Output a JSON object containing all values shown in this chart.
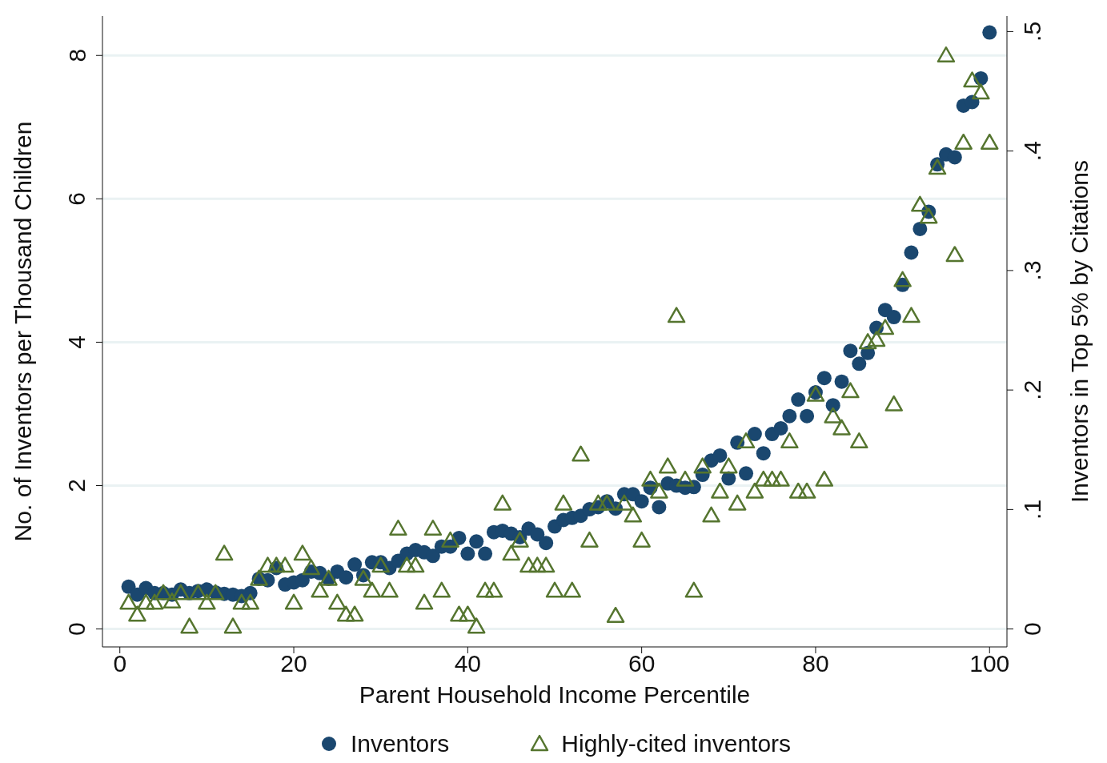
{
  "chart_data": {
    "type": "scatter",
    "xlabel": "Parent Household Income Percentile",
    "ylabel": "No. of Inventors per Thousand Children",
    "y2label": "Inventors in Top 5% by Citations",
    "x": [
      1,
      2,
      3,
      4,
      5,
      6,
      7,
      8,
      9,
      10,
      11,
      12,
      13,
      14,
      15,
      16,
      17,
      18,
      19,
      20,
      21,
      22,
      23,
      24,
      25,
      26,
      27,
      28,
      29,
      30,
      31,
      32,
      33,
      34,
      35,
      36,
      37,
      38,
      39,
      40,
      41,
      42,
      43,
      44,
      45,
      46,
      47,
      48,
      49,
      50,
      51,
      52,
      53,
      54,
      55,
      56,
      57,
      58,
      59,
      60,
      61,
      62,
      63,
      64,
      65,
      66,
      67,
      68,
      69,
      70,
      71,
      72,
      73,
      74,
      75,
      76,
      77,
      78,
      79,
      80,
      81,
      82,
      83,
      84,
      85,
      86,
      87,
      88,
      89,
      90,
      91,
      92,
      93,
      94,
      95,
      96,
      97,
      98,
      99,
      100
    ],
    "series": [
      {
        "name": "Inventors",
        "color": "#1a476f",
        "marker": "circle",
        "values": [
          0.59,
          0.48,
          0.57,
          0.5,
          0.5,
          0.48,
          0.55,
          0.5,
          0.53,
          0.55,
          0.51,
          0.49,
          0.48,
          0.46,
          0.5,
          0.7,
          0.68,
          0.85,
          0.62,
          0.65,
          0.68,
          0.8,
          0.78,
          0.7,
          0.8,
          0.72,
          0.9,
          0.75,
          0.93,
          0.93,
          0.85,
          0.95,
          1.05,
          1.1,
          1.07,
          1.02,
          1.15,
          1.15,
          1.27,
          1.05,
          1.22,
          1.05,
          1.35,
          1.37,
          1.33,
          1.28,
          1.4,
          1.32,
          1.2,
          1.43,
          1.52,
          1.55,
          1.58,
          1.67,
          1.7,
          1.78,
          1.68,
          1.88,
          1.88,
          1.78,
          1.97,
          1.7,
          2.03,
          2.0,
          1.97,
          1.98,
          2.15,
          2.35,
          2.42,
          2.1,
          2.6,
          2.17,
          2.72,
          2.45,
          2.72,
          2.8,
          2.97,
          3.2,
          2.97,
          3.3,
          3.5,
          3.12,
          3.45,
          3.88,
          3.7,
          3.85,
          4.2,
          4.45,
          4.35,
          4.8,
          5.25,
          5.58,
          5.82,
          6.48,
          6.62,
          6.58,
          7.3,
          7.35,
          7.68,
          8.32
        ]
      },
      {
        "name": "Highly-cited inventors",
        "color": "#55752f",
        "marker": "triangle",
        "axis": "y2",
        "values": [
          0.022,
          0.012,
          0.022,
          0.022,
          0.03,
          0.023,
          0.03,
          0.002,
          0.03,
          0.022,
          0.03,
          0.063,
          0.002,
          0.022,
          0.022,
          0.042,
          0.053,
          0.053,
          0.053,
          0.022,
          0.063,
          0.051,
          0.032,
          0.042,
          0.022,
          0.012,
          0.012,
          0.042,
          0.032,
          0.053,
          0.032,
          0.084,
          0.053,
          0.053,
          0.022,
          0.084,
          0.032,
          0.074,
          0.012,
          0.012,
          0.002,
          0.032,
          0.032,
          0.105,
          0.063,
          0.074,
          0.053,
          0.053,
          0.053,
          0.032,
          0.105,
          0.032,
          0.146,
          0.074,
          0.105,
          0.105,
          0.011,
          0.105,
          0.095,
          0.074,
          0.125,
          0.115,
          0.136,
          0.262,
          0.125,
          0.032,
          0.136,
          0.095,
          0.115,
          0.136,
          0.105,
          0.157,
          0.115,
          0.125,
          0.125,
          0.125,
          0.157,
          0.115,
          0.115,
          0.196,
          0.125,
          0.178,
          0.168,
          0.199,
          0.157,
          0.24,
          0.242,
          0.252,
          0.188,
          0.292,
          0.262,
          0.355,
          0.345,
          0.386,
          0.48,
          0.313,
          0.407,
          0.459,
          0.449,
          0.407
        ]
      }
    ],
    "xlim": [
      -2,
      102
    ],
    "xticks": [
      0,
      20,
      40,
      60,
      80,
      100
    ],
    "ylim": [
      -0.25,
      8.55
    ],
    "yticks": [
      0,
      2,
      4,
      6,
      8
    ],
    "y2lim": [
      -0.015,
      0.513
    ],
    "y2ticks": [
      0,
      {
        "value": 0.1,
        "label": ".1"
      },
      {
        "value": 0.2,
        "label": ".2"
      },
      {
        "value": 0.3,
        "label": ".3"
      },
      {
        "value": 0.4,
        "label": ".4"
      },
      {
        "value": 0.5,
        "label": ".5"
      }
    ],
    "grid": "y",
    "legend": "bottom"
  }
}
